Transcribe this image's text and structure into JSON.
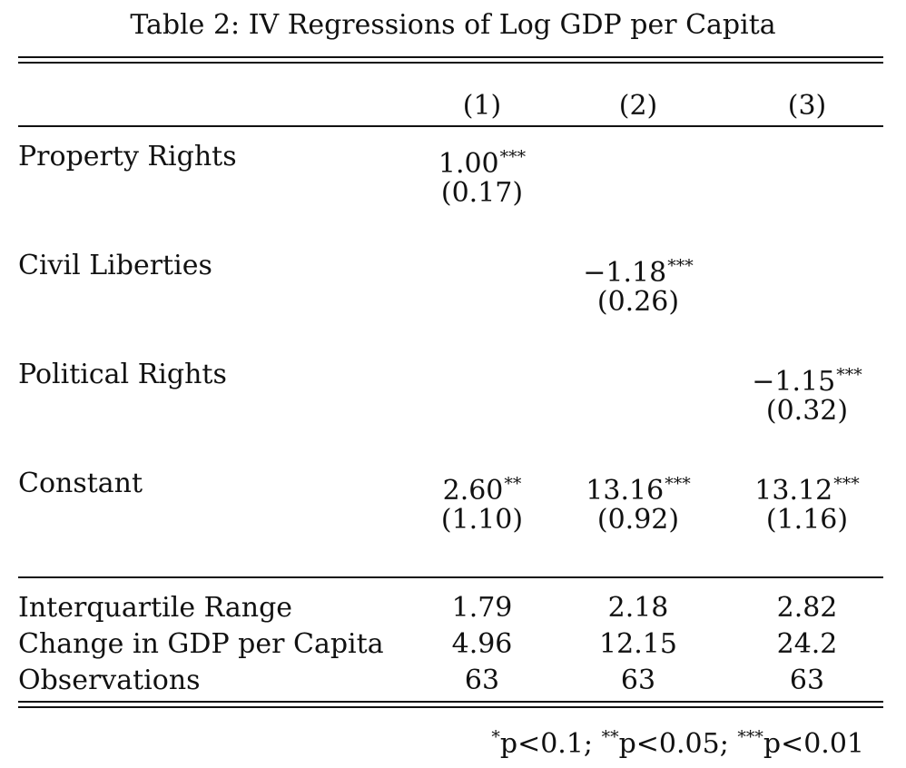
{
  "caption": "Table 2: IV Regressions of Log GDP per Capita",
  "columns": [
    "(1)",
    "(2)",
    "(3)"
  ],
  "coef_rows": [
    {
      "label": "Property Rights",
      "est": [
        {
          "value": "1.00",
          "stars": "***"
        },
        {
          "value": "",
          "stars": ""
        },
        {
          "value": "",
          "stars": ""
        }
      ],
      "se": [
        "(0.17)",
        "",
        ""
      ]
    },
    {
      "label": "Civil Liberties",
      "est": [
        {
          "value": "",
          "stars": ""
        },
        {
          "value": "−1.18",
          "stars": "***"
        },
        {
          "value": "",
          "stars": ""
        }
      ],
      "se": [
        "",
        "(0.26)",
        ""
      ]
    },
    {
      "label": "Political Rights",
      "est": [
        {
          "value": "",
          "stars": ""
        },
        {
          "value": "",
          "stars": ""
        },
        {
          "value": "−1.15",
          "stars": "***"
        }
      ],
      "se": [
        "",
        "",
        "(0.32)"
      ]
    },
    {
      "label": "Constant",
      "est": [
        {
          "value": "2.60",
          "stars": "**"
        },
        {
          "value": "13.16",
          "stars": "***"
        },
        {
          "value": "13.12",
          "stars": "***"
        }
      ],
      "se": [
        "(1.10)",
        "(0.92)",
        "(1.16)"
      ]
    }
  ],
  "stat_rows": [
    {
      "label": "Interquartile Range",
      "values": [
        "1.79",
        "2.18",
        "2.82"
      ]
    },
    {
      "label": "Change in GDP per Capita",
      "values": [
        "4.96",
        "12.15",
        "24.2"
      ]
    },
    {
      "label": "Observations",
      "values": [
        "63",
        "63",
        "63"
      ]
    }
  ],
  "notes": [
    {
      "stars": "*",
      "text": "p<0.1; "
    },
    {
      "stars": "**",
      "text": "p<0.05; "
    },
    {
      "stars": "***",
      "text": "p<0.01"
    }
  ]
}
